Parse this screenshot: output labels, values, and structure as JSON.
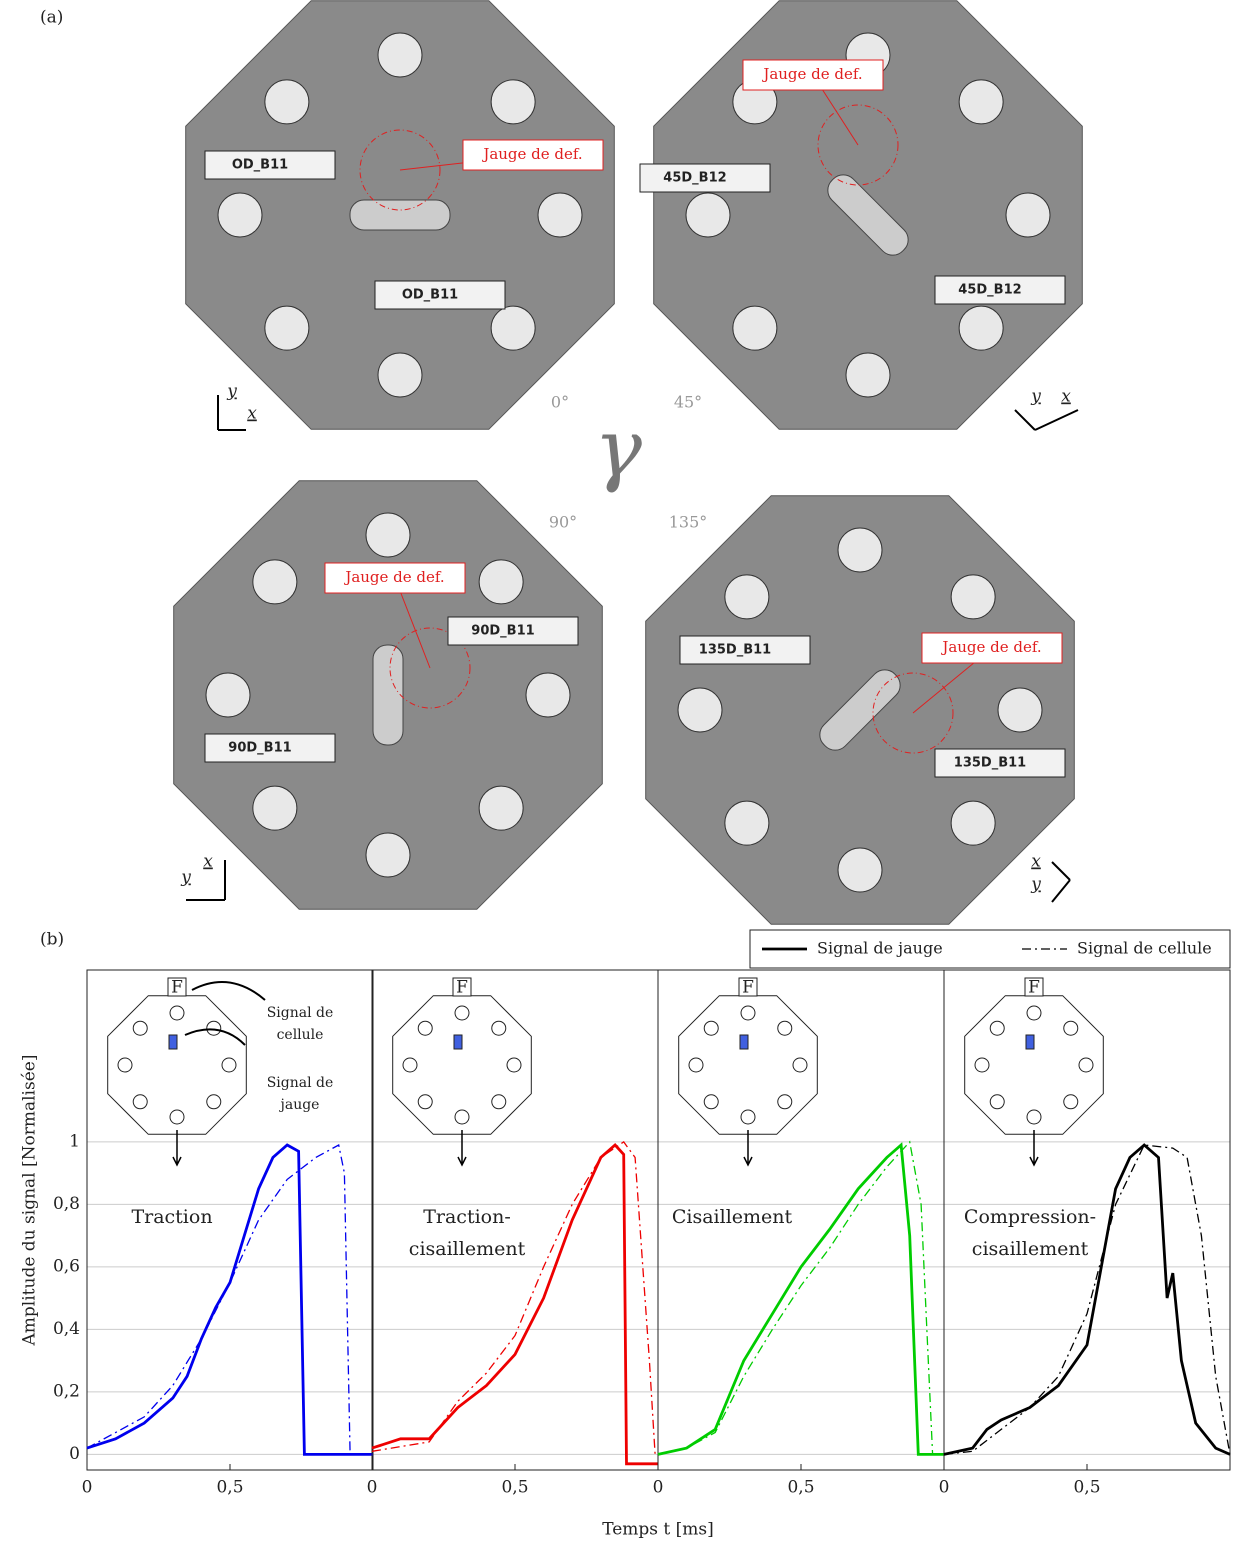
{
  "figure": {
    "label_a": "(a)",
    "label_b": "(b)",
    "gamma": "γ",
    "photos": [
      {
        "angle": "0°",
        "gauge_label": "Jauge de def.",
        "tags": [
          "OD_B11",
          "OD_B11"
        ],
        "axes": [
          "y",
          "x"
        ]
      },
      {
        "angle": "45°",
        "gauge_label": "Jauge de def.",
        "tags": [
          "45D_B12",
          "45D_B12"
        ],
        "axes": [
          "y",
          "x"
        ]
      },
      {
        "angle": "90°",
        "gauge_label": "Jauge de def.",
        "tags": [
          "90D_B11",
          "90D_B11"
        ],
        "axes": [
          "x",
          "y"
        ]
      },
      {
        "angle": "135°",
        "gauge_label": "Jauge de def.",
        "tags": [
          "135D_B11",
          "135D_B11"
        ],
        "axes": [
          "x",
          "y"
        ]
      }
    ]
  },
  "chart_data": {
    "type": "line",
    "y_label": "Amplitude du signal [Normalisée]",
    "x_label": "Temps t [ms]",
    "xlim": [
      0,
      1
    ],
    "xticks": [
      0,
      {
        "value": 0.5,
        "label": "0,5"
      }
    ],
    "ylim": [
      -0.05,
      1.55
    ],
    "yticks": [
      0,
      {
        "value": 0.2,
        "label": "0,2"
      },
      {
        "value": 0.4,
        "label": "0,4"
      },
      {
        "value": 0.6,
        "label": "0,6"
      },
      {
        "value": 0.8,
        "label": "0,8"
      },
      1
    ],
    "grid": true,
    "legend": [
      {
        "name": "Signal de jauge",
        "style": "solid"
      },
      {
        "name": "Signal de cellule",
        "style": "dashdot"
      }
    ],
    "inset_force": "F",
    "inset_notes": [
      [
        "Signal de",
        "cellule"
      ],
      [
        "Signal de",
        "jauge"
      ]
    ],
    "panels": [
      {
        "label": [
          "Traction"
        ],
        "color": "#0000ee",
        "gauge": {
          "x": [
            0,
            0.1,
            0.2,
            0.3,
            0.35,
            0.4,
            0.45,
            0.5,
            0.55,
            0.6,
            0.65,
            0.7,
            0.74,
            0.76,
            1
          ],
          "values": [
            0.02,
            0.05,
            0.1,
            0.18,
            0.25,
            0.37,
            0.47,
            0.55,
            0.7,
            0.85,
            0.95,
            0.99,
            0.97,
            0,
            0
          ]
        },
        "cell": {
          "x": [
            0,
            0.2,
            0.3,
            0.4,
            0.5,
            0.6,
            0.7,
            0.8,
            0.88,
            0.9,
            0.92,
            1
          ],
          "values": [
            0.02,
            0.12,
            0.22,
            0.37,
            0.55,
            0.75,
            0.88,
            0.95,
            0.99,
            0.9,
            0,
            0
          ]
        }
      },
      {
        "label": [
          "Traction-",
          "cisaillement"
        ],
        "color": "#ee0000",
        "gauge": {
          "x": [
            0,
            0.1,
            0.2,
            0.3,
            0.4,
            0.5,
            0.6,
            0.7,
            0.8,
            0.85,
            0.88,
            0.89,
            1
          ],
          "values": [
            0.02,
            0.05,
            0.05,
            0.15,
            0.22,
            0.32,
            0.5,
            0.75,
            0.95,
            0.99,
            0.96,
            -0.03,
            -0.03
          ]
        },
        "cell": {
          "x": [
            0,
            0.2,
            0.3,
            0.4,
            0.5,
            0.6,
            0.7,
            0.8,
            0.88,
            0.92,
            0.97,
            0.99
          ],
          "values": [
            0.01,
            0.04,
            0.17,
            0.26,
            0.38,
            0.6,
            0.8,
            0.95,
            1,
            0.95,
            0.3,
            0
          ]
        }
      },
      {
        "label": [
          "Cisaillement"
        ],
        "color": "#00cc00",
        "gauge": {
          "x": [
            0,
            0.1,
            0.2,
            0.3,
            0.4,
            0.5,
            0.6,
            0.7,
            0.8,
            0.85,
            0.88,
            0.91,
            1
          ],
          "values": [
            0,
            0.02,
            0.08,
            0.3,
            0.45,
            0.6,
            0.72,
            0.85,
            0.95,
            0.99,
            0.7,
            0,
            0
          ]
        },
        "cell": {
          "x": [
            0,
            0.1,
            0.2,
            0.3,
            0.4,
            0.5,
            0.6,
            0.7,
            0.8,
            0.88,
            0.92,
            0.96,
            1
          ],
          "values": [
            0,
            0.02,
            0.07,
            0.25,
            0.4,
            0.54,
            0.66,
            0.8,
            0.92,
            1,
            0.8,
            0,
            0
          ]
        }
      },
      {
        "label": [
          "Compression-",
          "cisaillement"
        ],
        "color": "#000000",
        "gauge": {
          "x": [
            0,
            0.1,
            0.15,
            0.2,
            0.3,
            0.4,
            0.5,
            0.55,
            0.6,
            0.65,
            0.7,
            0.75,
            0.78,
            0.8,
            0.83,
            0.88,
            0.95,
            1
          ],
          "values": [
            0,
            0.02,
            0.08,
            0.11,
            0.15,
            0.22,
            0.35,
            0.6,
            0.85,
            0.95,
            0.99,
            0.95,
            0.5,
            0.58,
            0.3,
            0.1,
            0.02,
            0
          ]
        },
        "cell": {
          "x": [
            0,
            0.1,
            0.2,
            0.3,
            0.4,
            0.5,
            0.6,
            0.7,
            0.8,
            0.85,
            0.9,
            0.95,
            1
          ],
          "values": [
            0,
            0.01,
            0.08,
            0.15,
            0.25,
            0.45,
            0.8,
            0.99,
            0.98,
            0.95,
            0.7,
            0.25,
            0
          ]
        }
      }
    ]
  }
}
